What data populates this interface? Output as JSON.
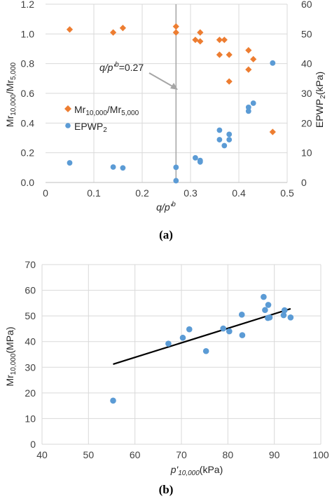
{
  "chart_data": [
    {
      "type": "scatter",
      "caption": "(a)",
      "xlabel_main": "q/p'",
      "xlabel_sup": "b",
      "ylabel_main": "Mr",
      "ylabel_sub1": "10,000",
      "ylabel_mid": "/Mr",
      "ylabel_sub2": "5,000",
      "y2label_main": "EPWP",
      "y2label_sub": "2",
      "y2label_tail": "(kPa)",
      "xlim": [
        0,
        0.5
      ],
      "ylim": [
        0,
        1.2
      ],
      "y2lim": [
        0,
        60
      ],
      "x_ticks": [
        "0",
        "0.1",
        "0.2",
        "0.3",
        "0.4",
        "0.5"
      ],
      "y_ticks": [
        "0.0",
        "0.2",
        "0.4",
        "0.6",
        "0.8",
        "1.0",
        "1.2"
      ],
      "y2_ticks": [
        "0",
        "10",
        "20",
        "30",
        "40",
        "50",
        "60"
      ],
      "grid": true,
      "legend_position": "middle-left",
      "annotation": {
        "text_main": "q/p'",
        "text_sup": "b",
        "text_tail": "=0.27",
        "vline_x": 0.27
      },
      "series": [
        {
          "name_main": "Mr",
          "name_sub1": "10,000",
          "name_mid": "/Mr",
          "name_sub2": "5,000",
          "marker": "diamond",
          "color": "#ED7D31",
          "axis": "left",
          "points": [
            [
              0.05,
              1.03
            ],
            [
              0.14,
              1.01
            ],
            [
              0.16,
              1.04
            ],
            [
              0.27,
              1.05
            ],
            [
              0.27,
              1.01
            ],
            [
              0.31,
              0.96
            ],
            [
              0.32,
              0.95
            ],
            [
              0.32,
              1.01
            ],
            [
              0.36,
              0.96
            ],
            [
              0.37,
              0.96
            ],
            [
              0.36,
              0.86
            ],
            [
              0.38,
              0.86
            ],
            [
              0.38,
              0.68
            ],
            [
              0.42,
              0.89
            ],
            [
              0.43,
              0.83
            ],
            [
              0.42,
              0.76
            ],
            [
              0.47,
              0.34
            ]
          ]
        },
        {
          "name_main": "EPWP",
          "name_sub": "2",
          "marker": "circle",
          "color": "#5B9BD5",
          "axis": "right",
          "points": [
            [
              0.05,
              6.6
            ],
            [
              0.14,
              5.2
            ],
            [
              0.16,
              4.9
            ],
            [
              0.27,
              5.1
            ],
            [
              0.27,
              0.6
            ],
            [
              0.31,
              8.3
            ],
            [
              0.32,
              7.4
            ],
            [
              0.32,
              6.9
            ],
            [
              0.36,
              17.6
            ],
            [
              0.36,
              14.4
            ],
            [
              0.37,
              12.4
            ],
            [
              0.38,
              16.2
            ],
            [
              0.38,
              14.4
            ],
            [
              0.42,
              25.3
            ],
            [
              0.42,
              24.0
            ],
            [
              0.43,
              26.7
            ],
            [
              0.47,
              40.2
            ]
          ]
        }
      ]
    },
    {
      "type": "scatter",
      "caption": "(b)",
      "xlabel_main": "p'",
      "xlabel_sub": "10,000",
      "xlabel_tail": "(kPa)",
      "ylabel_main": "Mr",
      "ylabel_sub": "10,000",
      "ylabel_tail": "(MPa)",
      "xlim": [
        40,
        100
      ],
      "ylim": [
        0,
        70
      ],
      "x_ticks": [
        "40",
        "50",
        "60",
        "70",
        "80",
        "90",
        "100"
      ],
      "y_ticks": [
        "0",
        "10",
        "20",
        "30",
        "40",
        "50",
        "60",
        "70"
      ],
      "grid": true,
      "color": "#5B9BD5",
      "points": [
        [
          55.3,
          17.0
        ],
        [
          67.2,
          39.2
        ],
        [
          70.3,
          41.5
        ],
        [
          71.7,
          44.8
        ],
        [
          75.3,
          36.3
        ],
        [
          79.0,
          45.1
        ],
        [
          80.3,
          44.0
        ],
        [
          83.0,
          50.5
        ],
        [
          83.1,
          42.5
        ],
        [
          87.7,
          57.4
        ],
        [
          88.0,
          52.3
        ],
        [
          88.7,
          54.3
        ],
        [
          88.6,
          49.2
        ],
        [
          89.0,
          49.4
        ],
        [
          92.0,
          50.3
        ],
        [
          92.2,
          52.2
        ],
        [
          93.5,
          49.4
        ]
      ],
      "trendline": {
        "x": [
          55.3,
          93.5
        ],
        "y": [
          31.2,
          52.8
        ],
        "color": "#000000"
      }
    }
  ]
}
